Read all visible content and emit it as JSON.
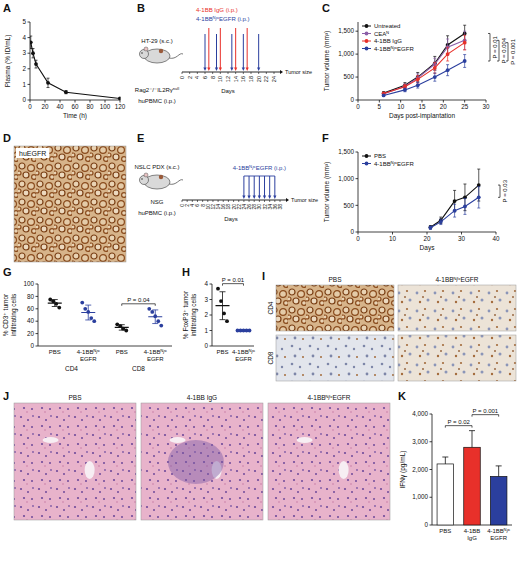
{
  "chart_data": [
    {
      "label": "A",
      "type": "line",
      "x": [
        1,
        4,
        8,
        24,
        48,
        120
      ],
      "values": [
        3.7,
        3.0,
        2.3,
        1.1,
        0.5,
        0.1
      ],
      "errors": [
        0.4,
        0.3,
        0.25,
        0.3,
        0.1,
        0.05
      ],
      "color": "#111111",
      "marker": "circle",
      "xlim": [
        0,
        120
      ],
      "xticks": [
        0,
        20,
        40,
        60,
        80,
        100,
        120
      ],
      "ylim": [
        0,
        5
      ],
      "yticks": [
        0,
        1,
        2,
        3,
        4,
        5
      ],
      "x_label": "Time (h)",
      "y_label": "Plasma (% ID/mL)"
    },
    {
      "label": "C",
      "type": "line",
      "x": [
        6,
        11,
        14,
        18,
        21,
        25
      ],
      "series": [
        {
          "name": "Untreated",
          "color": "#111111",
          "values": [
            150,
            320,
            500,
            800,
            1200,
            1450
          ],
          "errors": [
            30,
            60,
            100,
            150,
            200,
            180
          ]
        },
        {
          "name": "CEAᴺ",
          "color": "#8b5fa8",
          "values": [
            130,
            300,
            480,
            780,
            1150,
            1300
          ],
          "errors": [
            25,
            50,
            90,
            130,
            180,
            200
          ]
        },
        {
          "name": "4-1BB IgG",
          "color": "#e8302a",
          "values": [
            140,
            290,
            450,
            700,
            1000,
            1250
          ],
          "errors": [
            30,
            50,
            80,
            120,
            150,
            160
          ]
        },
        {
          "name": "4-1BBᴺ/ᶜEGFR",
          "color": "#2b3f9e",
          "values": [
            100,
            220,
            320,
            500,
            650,
            850
          ],
          "errors": [
            20,
            40,
            60,
            90,
            120,
            140
          ]
        }
      ],
      "marker": "circle",
      "legend": "top-left",
      "xlim": [
        0,
        30
      ],
      "xticks": [
        0,
        5,
        10,
        15,
        20,
        25,
        30
      ],
      "ylim": [
        0,
        1700
      ],
      "yticks": [
        0,
        500,
        {
          "value": 1000,
          "label": "1,000"
        },
        {
          "value": 1500,
          "label": "1,500"
        }
      ],
      "x_label": "Days post-implantation",
      "y_label": "Tumor volume (mm³)",
      "annotations": [
        "P = 0.01",
        "P = 0.004",
        "P = 0.001"
      ]
    },
    {
      "label": "F",
      "type": "line",
      "x": [
        21,
        24,
        28,
        31,
        35
      ],
      "series": [
        {
          "name": "PBS",
          "color": "#111111",
          "values": [
            90,
            220,
            580,
            650,
            880
          ],
          "errors": [
            30,
            60,
            200,
            250,
            300
          ]
        },
        {
          "name": "4-1BBᴺ/ᶜEGFR",
          "color": "#2b3f9e",
          "values": [
            80,
            190,
            400,
            480,
            650
          ],
          "errors": [
            30,
            50,
            120,
            150,
            200
          ]
        }
      ],
      "marker": "circle",
      "legend": "top-left",
      "xlim": [
        0,
        40
      ],
      "xticks": [
        0,
        10,
        20,
        30,
        40
      ],
      "ylim": [
        0,
        1500
      ],
      "yticks": [
        0,
        500,
        {
          "value": 1000,
          "label": "1,000"
        },
        {
          "value": 1500,
          "label": "1,500"
        }
      ],
      "x_label": "Days",
      "y_label": "Tumor volume (mm³)",
      "annotations": [
        "P = 0.03"
      ]
    },
    {
      "label": "G",
      "type": "strip",
      "groups": [
        "CD4",
        "CD8"
      ],
      "categories": [
        "PBS",
        "4-1BBᴺ/ᶜEGFR",
        "PBS",
        "4-1BBᴺ/ᶜEGFR"
      ],
      "colors": [
        "#111111",
        "#2b3f9e",
        "#111111",
        "#2b3f9e"
      ],
      "values": [
        [
          75,
          72,
          68,
          62
        ],
        [
          70,
          60,
          55,
          45,
          40
        ],
        [
          35,
          32,
          28,
          25
        ],
        [
          60,
          55,
          48,
          40,
          33
        ]
      ],
      "mean": [
        69.3,
        54,
        30,
        47.2
      ],
      "sd": [
        5.6,
        12,
        4.4,
        11
      ],
      "ylim": [
        0,
        100
      ],
      "yticks": [
        0,
        20,
        40,
        60,
        80,
        100
      ],
      "y_label": "% CD3⁺ tumor infiltrating cells",
      "annotations": [
        "P = 0.04"
      ]
    },
    {
      "label": "H",
      "type": "strip",
      "categories": [
        "PBS",
        "4-1BBᴺ/ᶜEGFR"
      ],
      "colors": [
        "#111111",
        "#2b3f9e"
      ],
      "values": [
        [
          3.7,
          2.9,
          2.1,
          1.6
        ],
        [
          1,
          1,
          1,
          1,
          1
        ]
      ],
      "mean": [
        2.6,
        1
      ],
      "sd": [
        0.9,
        0
      ],
      "ylim": [
        0,
        4
      ],
      "yticks": [
        0,
        1,
        2,
        3,
        4
      ],
      "y_label": "% FoxP3⁺ tumor infiltrating cells",
      "annotations": [
        "P = 0.01"
      ]
    },
    {
      "label": "K",
      "type": "bar",
      "categories": [
        "PBS",
        "4-1BB IgG",
        "4-1BBᴺ/ᶜEGFR"
      ],
      "values": [
        2200,
        2800,
        1750
      ],
      "errors": [
        250,
        600,
        380
      ],
      "colors": [
        "#ffffff",
        "#e8302a",
        "#2b3f9e"
      ],
      "ylim": [
        0,
        4000
      ],
      "yticks": [
        0,
        {
          "value": 1000,
          "label": "1,000"
        },
        {
          "value": 2000,
          "label": "2,000"
        },
        {
          "value": 3000,
          "label": "3,000"
        },
        {
          "value": 4000,
          "label": "4,000"
        }
      ],
      "y_label": "IFNγ (pg/mL)",
      "annotations": [
        "P = 0.02",
        "P = 0.001"
      ]
    }
  ],
  "diagrams": [
    {
      "label": "B",
      "doses": [
        {
          "text": "4-1BB IgG (i.p.)",
          "color": "#e8302a",
          "days": [
            7,
            10,
            14,
            17
          ]
        },
        {
          "text": "4-1BBᴺ/ᶜEGFR (i.p.)",
          "color": "#2b3f9e",
          "days": [
            6,
            9,
            13,
            16,
            20
          ]
        }
      ],
      "tumor": "HT-29 (s.c.)",
      "mouse": "Rag2⁻/⁻IL2Rγⁿᵘˡˡ",
      "cells": "huPBMC (i.p.)",
      "xlim": [
        0,
        24
      ],
      "ticks": [
        0,
        2,
        4,
        6,
        8,
        10,
        12,
        14,
        16,
        18,
        20,
        22,
        24
      ],
      "x_label": "Days",
      "end_label": "Tumor size"
    },
    {
      "label": "E",
      "doses": [
        {
          "text": "4-1BBᴺ/ᶜEGFR (i.p.)",
          "color": "#2b3f9e",
          "days": [
            24,
            26,
            28,
            30,
            32,
            34,
            36
          ]
        }
      ],
      "tumor": "NSLC PDX (s.c.)",
      "mouse": "NSG",
      "cells": "huPBMC (i.p.)",
      "xlim": [
        0,
        38
      ],
      "ticks": [
        0,
        2,
        4,
        6,
        8,
        10,
        12,
        14,
        16,
        18,
        20,
        22,
        24,
        26,
        28,
        30,
        32,
        34,
        36,
        38
      ],
      "x_label": "Days",
      "end_label": "Tumor size"
    }
  ],
  "images": [
    {
      "label": "D",
      "title": "huEGFR"
    },
    {
      "label": "I",
      "columns": [
        "PBS",
        "4-1BBᴺ/ᶜEGFR"
      ],
      "rows": [
        "CD4",
        "CD8"
      ]
    },
    {
      "label": "J",
      "columns": [
        "PBS",
        "4-1BB IgG",
        "4-1BBᴺ/ᶜEGFR"
      ]
    }
  ]
}
